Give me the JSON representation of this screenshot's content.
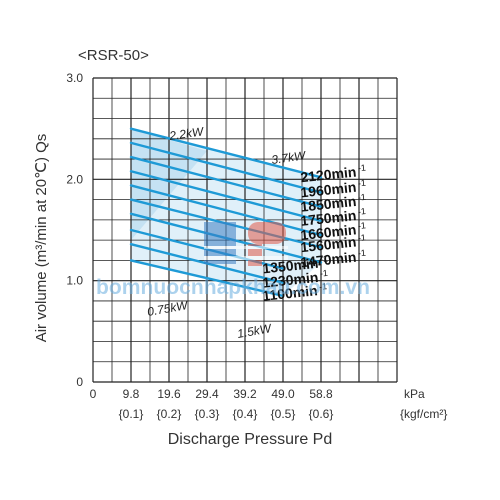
{
  "chart_data": {
    "type": "line",
    "title": "<RSR-50>",
    "xlabel": "Discharge Pressure Pd",
    "ylabel": "Air volume (m³/min at 20℃) Qs",
    "x_ticks": [
      "0",
      "9.8",
      "19.6",
      "29.4",
      "39.2",
      "49.0",
      "58.8"
    ],
    "x_ticks_kgf": [
      "{0.1}",
      "{0.2}",
      "{0.3}",
      "{0.4}",
      "{0.5}",
      "{0.6}"
    ],
    "x_unit": "kPa",
    "x_unit2": "{kgf/cm²}",
    "y_ticks": [
      "0",
      "1.0",
      "2.0",
      "3.0"
    ],
    "xlim": [
      0,
      78.4
    ],
    "ylim": [
      0,
      3.0
    ],
    "grid": true,
    "series": [
      {
        "name": "2120min-1",
        "x": [
          9.8,
          58.8
        ],
        "y": [
          2.5,
          2.02
        ]
      },
      {
        "name": "1960min-1",
        "x": [
          9.8,
          58.8
        ],
        "y": [
          2.36,
          1.87
        ]
      },
      {
        "name": "1850min-1",
        "x": [
          9.8,
          58.8
        ],
        "y": [
          2.22,
          1.73
        ]
      },
      {
        "name": "1750min-1",
        "x": [
          9.8,
          58.8
        ],
        "y": [
          2.08,
          1.59
        ]
      },
      {
        "name": "1660min-1",
        "x": [
          9.8,
          58.8
        ],
        "y": [
          1.94,
          1.45
        ]
      },
      {
        "name": "1560min-1",
        "x": [
          9.8,
          58.8
        ],
        "y": [
          1.8,
          1.33
        ]
      },
      {
        "name": "1470min-1",
        "x": [
          9.8,
          58.8
        ],
        "y": [
          1.66,
          1.18
        ]
      },
      {
        "name": "1350min-1",
        "x": [
          9.8,
          49.0
        ],
        "y": [
          1.5,
          1.12
        ]
      },
      {
        "name": "1230min-1",
        "x": [
          9.8,
          49.0
        ],
        "y": [
          1.36,
          0.98
        ]
      },
      {
        "name": "1100min-1",
        "x": [
          9.8,
          49.0
        ],
        "y": [
          1.2,
          0.85
        ]
      }
    ],
    "power_labels": [
      "2.2kW",
      "3.7kW",
      "0.75kW",
      "1.5kW"
    ],
    "watermark": "bomnuocnhapkhau.com.vn",
    "colors": {
      "line": "#1e9ad6",
      "region": "#d6ebf7",
      "grid": "#222222"
    }
  }
}
